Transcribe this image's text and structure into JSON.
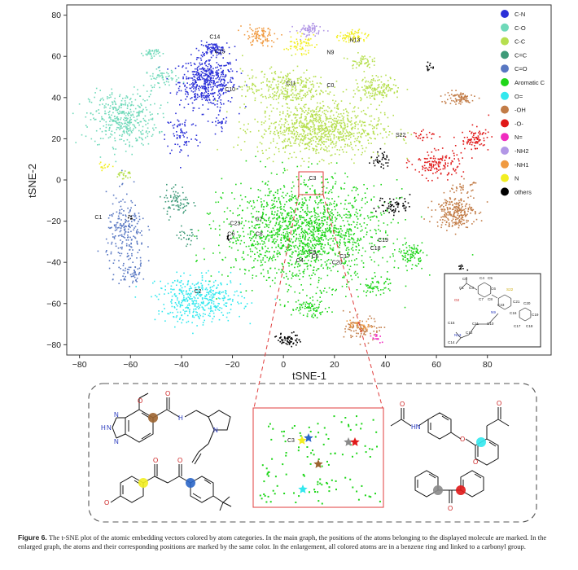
{
  "chart_data": {
    "type": "scatter",
    "title": "",
    "xlabel": "tSNE-1",
    "ylabel": "tSNE-2",
    "xlim": [
      -85,
      105
    ],
    "ylim": [
      -85,
      85
    ],
    "xticks": [
      "−80",
      "−60",
      "−40",
      "−20",
      "0",
      "20",
      "40",
      "60",
      "80"
    ],
    "yticks": [
      "80",
      "60",
      "40",
      "20",
      "0",
      "−20",
      "−40",
      "−60",
      "−80"
    ],
    "xtick_values": [
      -80,
      -60,
      -40,
      -20,
      0,
      20,
      40,
      60,
      80
    ],
    "ytick_values": [
      80,
      60,
      40,
      20,
      0,
      -20,
      -40,
      -60,
      -80
    ],
    "legend_position": "top-right",
    "legend": [
      {
        "label": "C-N",
        "color": "#2b30d8"
      },
      {
        "label": "C-O",
        "color": "#6fd9b9"
      },
      {
        "label": "C-C",
        "color": "#b6df4f"
      },
      {
        "label": "C=C",
        "color": "#3d9a78"
      },
      {
        "label": "C=O",
        "color": "#5877c2"
      },
      {
        "label": "Aromatic C",
        "color": "#1fd61a"
      },
      {
        "label": "O=",
        "color": "#33e8ee"
      },
      {
        "label": "-OH",
        "color": "#c27c47"
      },
      {
        "label": "-O-",
        "color": "#e01818"
      },
      {
        "label": "N=",
        "color": "#f02bbf"
      },
      {
        "label": "-NH2",
        "color": "#b297e6"
      },
      {
        "label": "-NH1",
        "color": "#f09a40"
      },
      {
        "label": "N",
        "color": "#f2ee21"
      },
      {
        "label": "others",
        "color": "#000000"
      }
    ],
    "clusters": [
      {
        "category": "C-N",
        "cx": -30,
        "cy": 48,
        "rx": 10,
        "ry": 11,
        "n": 500
      },
      {
        "category": "C-N",
        "cx": -28,
        "cy": 64,
        "rx": 5,
        "ry": 2.5,
        "n": 90
      },
      {
        "category": "C-N",
        "cx": -40,
        "cy": 22,
        "rx": 6,
        "ry": 10,
        "n": 70
      },
      {
        "category": "C-N",
        "cx": -25,
        "cy": 28,
        "rx": 3,
        "ry": 6,
        "n": 25
      },
      {
        "category": "C-O",
        "cx": -63,
        "cy": 30,
        "rx": 12,
        "ry": 12,
        "n": 400
      },
      {
        "category": "C-O",
        "cx": -48,
        "cy": 50,
        "rx": 6,
        "ry": 4,
        "n": 60
      },
      {
        "category": "C-O",
        "cx": -52,
        "cy": 62,
        "rx": 3,
        "ry": 2,
        "n": 40
      },
      {
        "category": "C-C",
        "cx": 14,
        "cy": 25,
        "rx": 22,
        "ry": 12,
        "n": 900
      },
      {
        "category": "C-C",
        "cx": 0,
        "cy": 45,
        "rx": 15,
        "ry": 8,
        "n": 300
      },
      {
        "category": "C-C",
        "cx": 37,
        "cy": 45,
        "rx": 8,
        "ry": 5,
        "n": 150
      },
      {
        "category": "C-C",
        "cx": 30,
        "cy": 58,
        "rx": 4,
        "ry": 3,
        "n": 50
      },
      {
        "category": "C-C",
        "cx": -63,
        "cy": 3,
        "rx": 3,
        "ry": 2,
        "n": 25
      },
      {
        "category": "C=C",
        "cx": -42,
        "cy": -10,
        "rx": 5,
        "ry": 7,
        "n": 80
      },
      {
        "category": "C=C",
        "cx": -38,
        "cy": -28,
        "rx": 4,
        "ry": 4,
        "n": 25
      },
      {
        "category": "C=O",
        "cx": -62,
        "cy": -26,
        "rx": 7,
        "ry": 17,
        "n": 220
      },
      {
        "category": "C=O",
        "cx": -60,
        "cy": -45,
        "rx": 5,
        "ry": 4,
        "n": 50
      },
      {
        "category": "Aromatic C",
        "cx": 8,
        "cy": -25,
        "rx": 28,
        "ry": 22,
        "n": 1600
      },
      {
        "category": "Aromatic C",
        "cx": 50,
        "cy": -36,
        "rx": 4,
        "ry": 5,
        "n": 90
      },
      {
        "category": "Aromatic C",
        "cx": 36,
        "cy": -52,
        "rx": 6,
        "ry": 4,
        "n": 60
      },
      {
        "category": "Aromatic C",
        "cx": 10,
        "cy": -62,
        "rx": 7,
        "ry": 4,
        "n": 80
      },
      {
        "category": "O=",
        "cx": -33,
        "cy": -58,
        "rx": 15,
        "ry": 10,
        "n": 420
      },
      {
        "category": "-OH",
        "cx": 67,
        "cy": -15,
        "rx": 7,
        "ry": 7,
        "n": 250
      },
      {
        "category": "-OH",
        "cx": 68,
        "cy": 40,
        "rx": 6,
        "ry": 3,
        "n": 80
      },
      {
        "category": "-OH",
        "cx": 31,
        "cy": -72,
        "rx": 6,
        "ry": 5,
        "n": 100
      },
      {
        "category": "-OH",
        "cx": 70,
        "cy": -3,
        "rx": 4,
        "ry": 3,
        "n": 30
      },
      {
        "category": "-O-",
        "cx": 60,
        "cy": 8,
        "rx": 9,
        "ry": 6,
        "n": 140
      },
      {
        "category": "-O-",
        "cx": 75,
        "cy": 20,
        "rx": 5,
        "ry": 5,
        "n": 80
      },
      {
        "category": "-O-",
        "cx": 55,
        "cy": 22,
        "rx": 5,
        "ry": 2,
        "n": 25
      },
      {
        "category": "N=",
        "cx": 36,
        "cy": -76,
        "rx": 2,
        "ry": 2,
        "n": 15
      },
      {
        "category": "-NH2",
        "cx": 10,
        "cy": 73,
        "rx": 5,
        "ry": 3,
        "n": 70
      },
      {
        "category": "-NH1",
        "cx": -10,
        "cy": 70,
        "rx": 6,
        "ry": 4,
        "n": 90
      },
      {
        "category": "-NH1",
        "cx": 30,
        "cy": -70,
        "rx": 4,
        "ry": 3,
        "n": 30
      },
      {
        "category": "N",
        "cx": 6,
        "cy": 66,
        "rx": 5,
        "ry": 4,
        "n": 60
      },
      {
        "category": "N",
        "cx": 27,
        "cy": 70,
        "rx": 5,
        "ry": 3,
        "n": 70
      },
      {
        "category": "N",
        "cx": -70,
        "cy": 7,
        "rx": 3,
        "ry": 1.5,
        "n": 15
      },
      {
        "category": "others",
        "cx": 43,
        "cy": -12,
        "rx": 6,
        "ry": 4,
        "n": 60
      },
      {
        "category": "others",
        "cx": 38,
        "cy": 10,
        "rx": 3,
        "ry": 4,
        "n": 35
      },
      {
        "category": "others",
        "cx": 2,
        "cy": -77,
        "rx": 4,
        "ry": 3,
        "n": 60
      },
      {
        "category": "others",
        "cx": 57,
        "cy": 55,
        "rx": 1.5,
        "ry": 2,
        "n": 12
      },
      {
        "category": "others",
        "cx": 70,
        "cy": -42,
        "rx": 1.5,
        "ry": 1.5,
        "n": 10
      },
      {
        "category": "others",
        "cx": -22,
        "cy": -28,
        "rx": 1.5,
        "ry": 1,
        "n": 8
      },
      {
        "category": "others",
        "cx": -60,
        "cy": -18,
        "rx": 1.5,
        "ry": 1,
        "n": 6
      }
    ],
    "annotations": [
      {
        "text": "C14",
        "x": -29,
        "y": 68.5
      },
      {
        "text": "C15",
        "x": -27,
        "y": 61.5
      },
      {
        "text": "C10",
        "x": -23,
        "y": 43
      },
      {
        "text": "N13",
        "x": 26,
        "y": 67
      },
      {
        "text": "N9",
        "x": 17,
        "y": 61
      },
      {
        "text": "C11",
        "x": 1,
        "y": 46
      },
      {
        "text": "C0",
        "x": 17,
        "y": 45
      },
      {
        "text": "S22",
        "x": 44,
        "y": 21
      },
      {
        "text": "C3",
        "x": 10,
        "y": 0
      },
      {
        "text": "C1",
        "x": -74,
        "y": -19
      },
      {
        "text": "C23",
        "x": -21,
        "y": -22
      },
      {
        "text": "C7",
        "x": -11,
        "y": -20
      },
      {
        "text": "C6",
        "x": -22,
        "y": -27
      },
      {
        "text": "C8",
        "x": -11,
        "y": -27
      },
      {
        "text": "C19",
        "x": 37,
        "y": -30
      },
      {
        "text": "C18",
        "x": 34,
        "y": -34
      },
      {
        "text": "C9",
        "x": 10,
        "y": -36
      },
      {
        "text": "C5",
        "x": 11,
        "y": -38
      },
      {
        "text": "C4",
        "x": 5,
        "y": -40
      },
      {
        "text": "C17",
        "x": 22,
        "y": -38
      },
      {
        "text": "C20",
        "x": 19,
        "y": -41
      },
      {
        "text": "C2",
        "x": -35,
        "y": -55
      }
    ],
    "inset_labels": [
      "C0",
      "C1",
      "O2",
      "C3",
      "C4",
      "C5",
      "C6",
      "C7",
      "C8",
      "N9",
      "C10",
      "C11",
      "C12",
      "N13",
      "C14",
      "C15",
      "C16",
      "C17",
      "C18",
      "C19",
      "C20",
      "C21",
      "S22",
      "C23"
    ]
  },
  "zoom": {
    "label": "C3",
    "stars": [
      {
        "color": "#f2ee21"
      },
      {
        "color": "#2b66c8"
      },
      {
        "color": "#8a8a8a"
      },
      {
        "color": "#e01818"
      },
      {
        "color": "#9c6430"
      },
      {
        "color": "#33e8ee"
      }
    ]
  },
  "molecules": {
    "m1": {
      "o": "O",
      "o_methyl": "O",
      "nh": "H",
      "n1": "N",
      "n2": "N",
      "n3": "N",
      "n4": "N",
      "hn": "H"
    },
    "m2": {
      "o1": "O",
      "o2": "O",
      "o3": "O"
    },
    "m3": {
      "o1": "O",
      "hn": "HN",
      "o2": "O",
      "o3": "O",
      "o4": "O"
    },
    "m4": {
      "o": "O"
    }
  },
  "caption": {
    "figure": "Figure 6.",
    "text": " The t-SNE plot of the atomic embedding vectors colored by atom categories. In the main graph, the positions of the atoms belonging to the displayed molecule are marked. In the enlarged graph, the atoms and their corresponding positions are marked by the same color. In the enlargement, all colored atoms are in a benzene ring and linked to a carbonyl group."
  }
}
